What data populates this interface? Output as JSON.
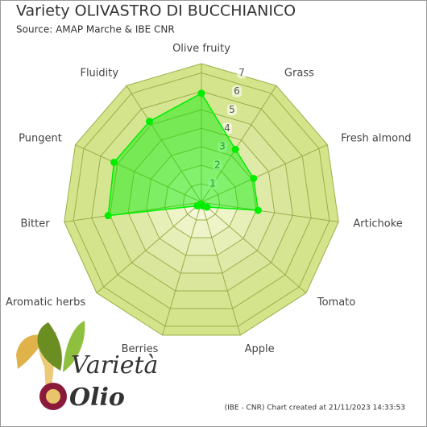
{
  "chart_data": {
    "type": "radar",
    "title": "Variety OLIVASTRO DI BUCCHIANICO",
    "subtitle": "Source: AMAP Marche & IBE CNR",
    "categories": [
      "Olive fruity",
      "Grass",
      "Fresh almond",
      "Artichoke",
      "Tomato",
      "Apple",
      "Berries",
      "Aromatic herbs",
      "Bitter",
      "Pungent",
      "Fluidity"
    ],
    "series": [
      {
        "name": "OLIVASTRO DI BUCCHIANICO",
        "color": "#00ee00",
        "values": [
          5.9,
          3.4,
          3.1,
          3.1,
          0.4,
          0.2,
          0.1,
          0.3,
          5.1,
          5.2,
          5.2
        ]
      }
    ],
    "ylim": [
      0,
      7.5
    ],
    "yticks": [
      1,
      2,
      3,
      4,
      5,
      6,
      7
    ],
    "footer": "(IBE - CNR) Chart created at 21/11/2023 14:33:53",
    "logo": {
      "top": "Varietà",
      "bottom": "Olio"
    }
  }
}
